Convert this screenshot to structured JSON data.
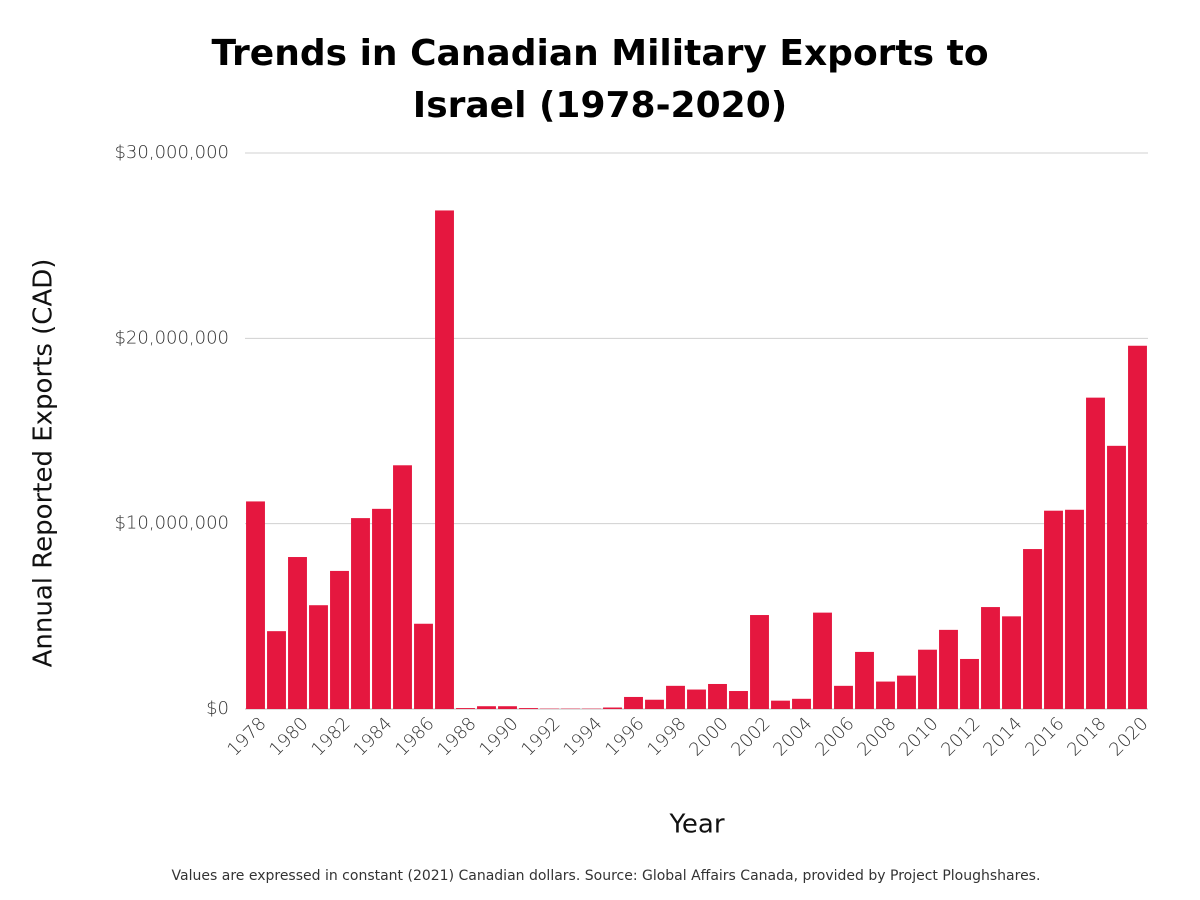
{
  "chart_data": {
    "type": "bar",
    "title": "Trends in Canadian Military Exports to Israel (1978-2020)",
    "x_label": "Year",
    "y_label": "Annual Reported Exports (CAD)",
    "note": "Values are expressed in constant (2021) Canadian dollars. Source: Global Affairs Canada, provided by Project Ploughshares.",
    "categories": [
      "1978",
      null,
      "1980",
      null,
      "1982",
      null,
      "1984",
      null,
      "1986",
      null,
      "1988",
      null,
      "1990",
      null,
      "1992",
      null,
      "1994",
      null,
      "1996",
      null,
      "1998",
      null,
      "2000",
      null,
      "2002",
      null,
      "2004",
      null,
      "2006",
      null,
      "2008",
      null,
      "2010",
      null,
      "2012",
      null,
      "2014",
      null,
      "2016",
      null,
      "2018",
      null,
      "2020"
    ],
    "values": [
      11200000,
      4200000,
      8200000,
      5600000,
      7450000,
      10300000,
      10800000,
      13150000,
      4600000,
      26900000,
      50000,
      150000,
      150000,
      50000,
      20000,
      20000,
      20000,
      80000,
      650000,
      500000,
      1250000,
      1050000,
      1350000,
      970000,
      5070000,
      450000,
      550000,
      5200000,
      1250000,
      3080000,
      1480000,
      1800000,
      3200000,
      4270000,
      2700000,
      5500000,
      5000000,
      8630000,
      10700000,
      10750000,
      16800000,
      14200000,
      19600000
    ],
    "color": "#e5173f",
    "ylim": [
      0,
      30000000
    ],
    "yticks": [
      {
        "value": 0,
        "label": "$0"
      },
      {
        "value": 10000000,
        "label": "$10,000,000"
      },
      {
        "value": 20000000,
        "label": "$20,000,000"
      },
      {
        "value": 30000000,
        "label": "$30,000,000"
      }
    ],
    "grid": true
  }
}
